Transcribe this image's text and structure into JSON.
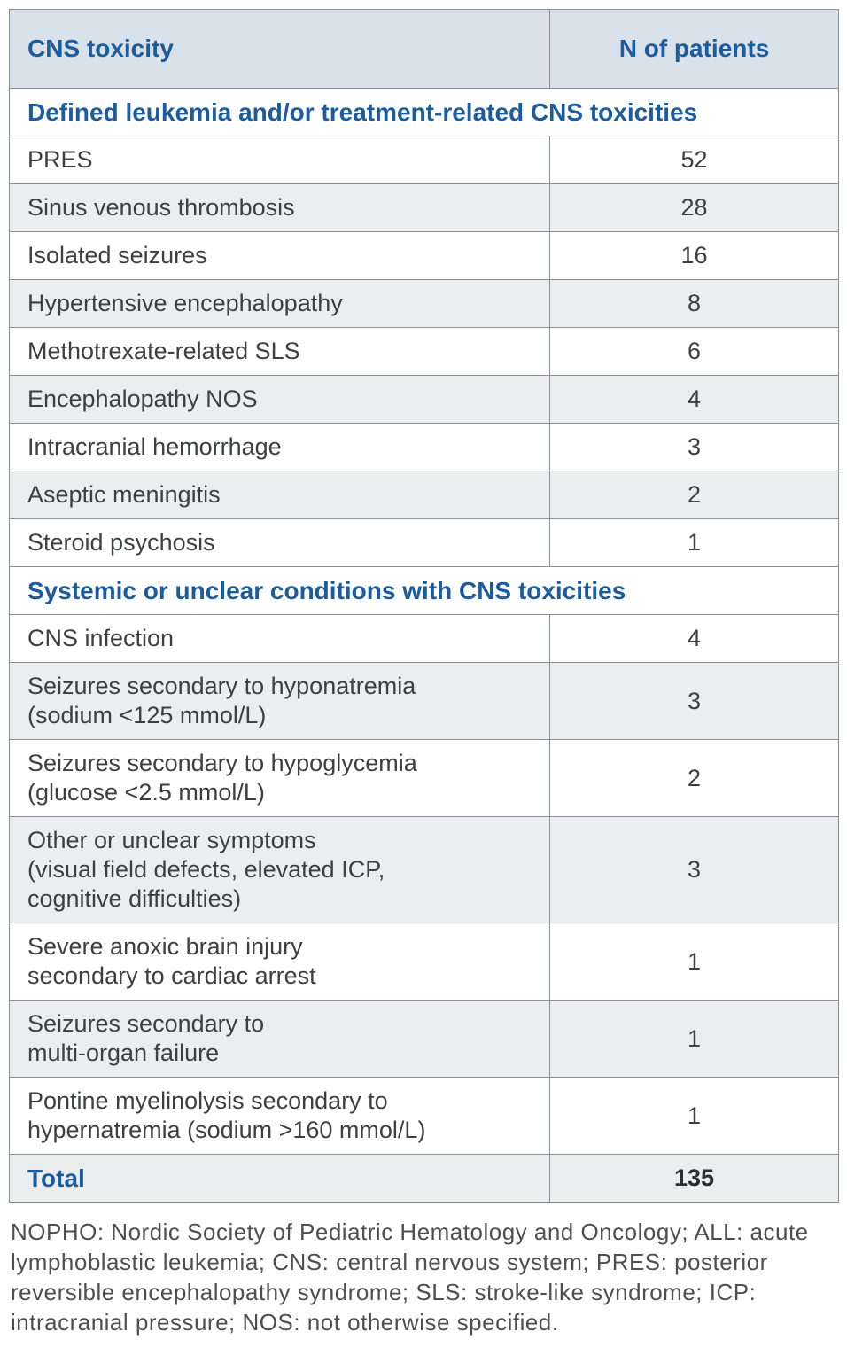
{
  "table": {
    "columns": [
      "CNS toxicity",
      "N of patients"
    ],
    "sections": [
      {
        "header": "Defined leukemia and/or treatment-related CNS toxicities",
        "rows": [
          {
            "label": "PRES",
            "value": "52"
          },
          {
            "label": "Sinus venous thrombosis",
            "value": "28"
          },
          {
            "label": "Isolated seizures",
            "value": "16"
          },
          {
            "label": "Hypertensive encephalopathy",
            "value": "8"
          },
          {
            "label": "Methotrexate-related SLS",
            "value": "6"
          },
          {
            "label": "Encephalopathy NOS",
            "value": "4"
          },
          {
            "label": "Intracranial hemorrhage",
            "value": "3"
          },
          {
            "label": "Aseptic meningitis",
            "value": "2"
          },
          {
            "label": "Steroid psychosis",
            "value": "1"
          }
        ]
      },
      {
        "header": "Systemic or unclear conditions with CNS toxicities",
        "rows": [
          {
            "label": "CNS infection",
            "value": "4"
          },
          {
            "label": "Seizures secondary to hyponatremia\n(sodium <125 mmol/L)",
            "value": "3"
          },
          {
            "label": "Seizures secondary to hypoglycemia\n(glucose <2.5 mmol/L)",
            "value": "2"
          },
          {
            "label": "Other or unclear symptoms\n(visual field defects, elevated ICP,\ncognitive difficulties)",
            "value": "3"
          },
          {
            "label": "Severe anoxic brain injury\nsecondary to cardiac arrest",
            "value": "1"
          },
          {
            "label": "Seizures secondary to\nmulti-organ failure",
            "value": "1"
          },
          {
            "label": "Pontine myelinolysis secondary to\nhypernatremia (sodium >160 mmol/L)",
            "value": "1"
          }
        ]
      }
    ],
    "total": {
      "label": "Total",
      "value": "135"
    }
  },
  "footnote": "NOPHO: Nordic Society of Pediatric Hematology and Oncology; ALL: acute lymphoblastic leukemia; CNS: central nervous system; PRES: posterior reversible encephalopathy syndrome; SLS: stroke-like syndrome; ICP: intracranial pressure; NOS: not otherwise specified.",
  "colors": {
    "header_bg": "#d9e2eb",
    "accent_blue": "#1b5c9e",
    "stripe_gray": "#ebedef",
    "border_gray": "#8a8f95",
    "body_text": "#3d3f42"
  }
}
